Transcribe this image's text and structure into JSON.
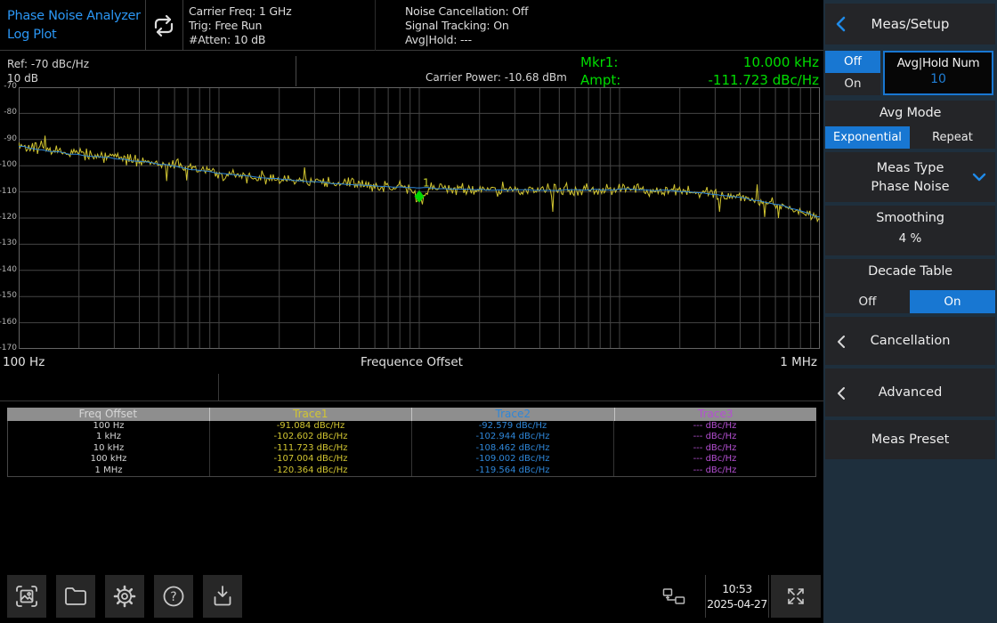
{
  "app": {
    "title_line1": "Phase Noise Analyzer",
    "title_line2": "Log Plot"
  },
  "header": {
    "sweep_icon": "repeat-icon",
    "settings_col1": [
      "Carrier Freq: 1 GHz",
      "Trig: Free Run",
      "#Atten: 10 dB"
    ],
    "settings_col2": [
      "Noise Cancellation: Off",
      "Signal Tracking: On",
      "Avg|Hold: ---"
    ]
  },
  "info_bar": {
    "ref_label": "Ref: -70 dBc/Hz",
    "scale_label": "10 dB",
    "carrier_power": "Carrier Power: -10.68 dBm",
    "marker_rows": [
      {
        "label": "Mkr1:",
        "value": "10.000 kHz"
      },
      {
        "label": "Ampt:",
        "value": "-111.723 dBc/Hz"
      }
    ]
  },
  "chart_data": {
    "type": "line",
    "x_axis": {
      "label": "Frequence Offset",
      "scale": "log",
      "min_hz": 100,
      "max_hz": 1000000,
      "min_label": "100 Hz",
      "max_label": "1 MHz"
    },
    "y_axis": {
      "unit": "dBc/Hz",
      "max": -70,
      "min": -170,
      "db_per_div": 10,
      "ticks": [
        -70,
        -80,
        -90,
        -100,
        -110,
        -120,
        -130,
        -140,
        -150,
        -160,
        -170
      ]
    },
    "grid": true,
    "series": [
      {
        "name": "Trace1",
        "color": "#d2c631",
        "style": "noisy",
        "noise": 2.2,
        "seed": 42,
        "anchors": [
          [
            2.0,
            -91.1
          ],
          [
            2.1,
            -93.4
          ],
          [
            2.25,
            -95.0
          ],
          [
            2.4,
            -96.3
          ],
          [
            2.55,
            -97.5
          ],
          [
            2.7,
            -99.0
          ],
          [
            2.85,
            -100.8
          ],
          [
            3.0,
            -102.6
          ],
          [
            3.15,
            -104.1
          ],
          [
            3.3,
            -105.1
          ],
          [
            3.5,
            -106.3
          ],
          [
            3.7,
            -107.3
          ],
          [
            3.85,
            -108.0
          ],
          [
            4.0,
            -108.4
          ],
          [
            4.2,
            -108.9
          ],
          [
            4.4,
            -109.3
          ],
          [
            4.6,
            -109.5
          ],
          [
            4.8,
            -109.2
          ],
          [
            5.0,
            -109.0
          ],
          [
            5.2,
            -109.3
          ],
          [
            5.35,
            -110.0
          ],
          [
            5.5,
            -110.9
          ],
          [
            5.65,
            -112.6
          ],
          [
            5.8,
            -115.2
          ],
          [
            5.9,
            -117.3
          ],
          [
            6.0,
            -120.2
          ]
        ],
        "pins": [
          -91.084,
          -102.602,
          -111.723,
          -107.004,
          -120.364
        ]
      },
      {
        "name": "Trace2",
        "color": "#2e86d8",
        "style": "smooth",
        "noise": 0,
        "seed": 7,
        "anchors": [
          [
            2.0,
            -92.6
          ],
          [
            2.2,
            -94.9
          ],
          [
            2.4,
            -96.7
          ],
          [
            2.6,
            -98.3
          ],
          [
            2.8,
            -100.5
          ],
          [
            3.0,
            -102.9
          ],
          [
            3.2,
            -104.5
          ],
          [
            3.4,
            -105.8
          ],
          [
            3.6,
            -106.9
          ],
          [
            3.8,
            -107.8
          ],
          [
            4.0,
            -108.5
          ],
          [
            4.2,
            -109.0
          ],
          [
            4.4,
            -109.3
          ],
          [
            4.6,
            -109.4
          ],
          [
            4.8,
            -109.2
          ],
          [
            5.0,
            -109.0
          ],
          [
            5.2,
            -109.4
          ],
          [
            5.4,
            -110.4
          ],
          [
            5.6,
            -112.0
          ],
          [
            5.8,
            -115.0
          ],
          [
            5.9,
            -117.2
          ],
          [
            6.0,
            -119.6
          ]
        ],
        "pins": [
          -92.579,
          -102.944,
          -108.462,
          -109.002,
          -119.564
        ]
      },
      {
        "name": "Trace3",
        "color": "#b44fd2",
        "style": "off",
        "anchors": null,
        "pins": null
      }
    ],
    "marker": {
      "id": "1",
      "trace": "Trace1",
      "freq_hz": 10000,
      "value_dbchz": -111.723,
      "color": "#00d900",
      "label_color": "#c8d22e"
    }
  },
  "table": {
    "headers": [
      "Freq Offset",
      "Trace1",
      "Trace2",
      "Trace3"
    ],
    "column_colors": [
      "#d6d6d6",
      "#d2c631",
      "#2e86d8",
      "#b44fd2"
    ],
    "header_bg": "#8e8e8e",
    "rows": [
      {
        "freq": "100 Hz",
        "values": [
          "-91.084 dBc/Hz",
          "-92.579 dBc/Hz",
          "--- dBc/Hz"
        ]
      },
      {
        "freq": "1 kHz",
        "values": [
          "-102.602 dBc/Hz",
          "-102.944 dBc/Hz",
          "--- dBc/Hz"
        ]
      },
      {
        "freq": "10 kHz",
        "values": [
          "-111.723 dBc/Hz",
          "-108.462 dBc/Hz",
          "--- dBc/Hz"
        ]
      },
      {
        "freq": "100 kHz",
        "values": [
          "-107.004 dBc/Hz",
          "-109.002 dBc/Hz",
          "--- dBc/Hz"
        ]
      },
      {
        "freq": "1 MHz",
        "values": [
          "-120.364 dBc/Hz",
          "-119.564 dBc/Hz",
          "--- dBc/Hz"
        ]
      }
    ]
  },
  "side_panel": {
    "title": "Meas/Setup",
    "avg_hold_toggle": {
      "options": [
        "Off",
        "On"
      ],
      "selected": "Off"
    },
    "avg_hold_num": {
      "label": "Avg|Hold Num",
      "value": "10"
    },
    "avg_mode": {
      "label": "Avg Mode",
      "options": [
        "Exponential",
        "Repeat"
      ],
      "selected": "Exponential"
    },
    "meas_type": {
      "label": "Meas Type",
      "value": "Phase Noise"
    },
    "smoothing": {
      "label": "Smoothing",
      "value": "4 %"
    },
    "decade_table": {
      "label": "Decade Table",
      "options": [
        "Off",
        "On"
      ],
      "selected": "On"
    },
    "cancellation_label": "Cancellation",
    "advanced_label": "Advanced",
    "meas_preset_label": "Meas Preset"
  },
  "toolbar": {
    "buttons": [
      "screenshot",
      "file-explorer",
      "settings",
      "help",
      "save"
    ],
    "status_icon": "lan-icon",
    "time": "10:53",
    "date": "2025-04-27",
    "fullscreen_icon": "expand-icon"
  },
  "colors": {
    "accent_blue": "#1877d2",
    "title_blue": "#2b97f5",
    "marker_green": "#00dd00",
    "panel_bg": "#1e2f3d",
    "tile_bg": "#242528"
  }
}
